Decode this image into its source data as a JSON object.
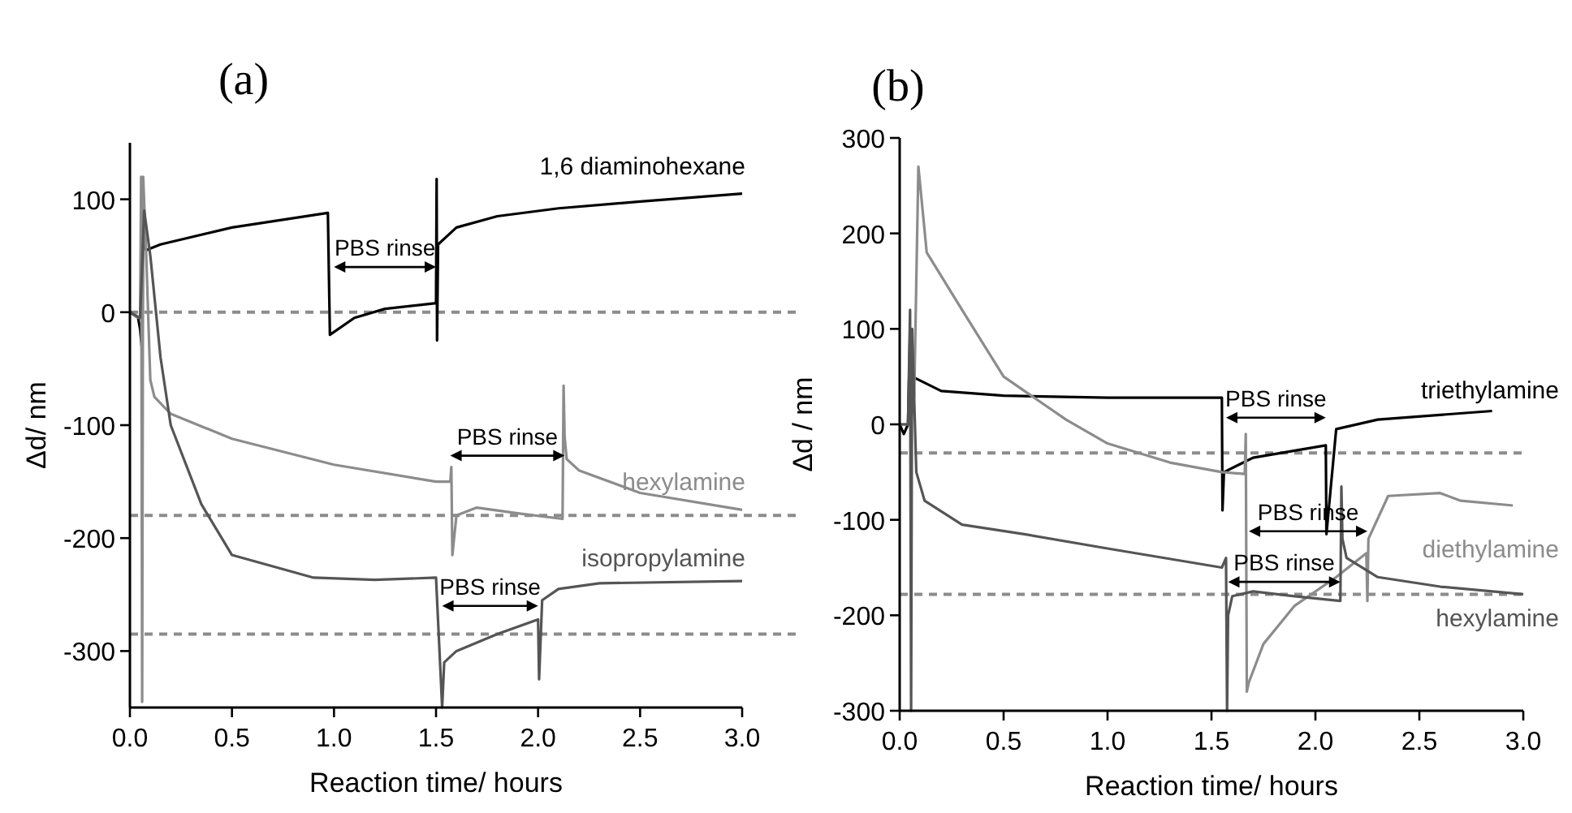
{
  "chart_data": [
    {
      "type": "line",
      "title": "(a)",
      "xlabel": "Reaction time/ hours",
      "ylabel": "Δd/ nm",
      "xlim": [
        0,
        3
      ],
      "ylim": [
        -350,
        150
      ],
      "xticks": [
        {
          "value": 0,
          "label": "0.0"
        },
        {
          "value": 0.5,
          "label": "0.5"
        },
        {
          "value": 1,
          "label": "1.0"
        },
        {
          "value": 1.5,
          "label": "1.5"
        },
        {
          "value": 2,
          "label": "2.0"
        },
        {
          "value": 2.5,
          "label": "2.5"
        },
        {
          "value": 3,
          "label": "3.0"
        }
      ],
      "yticks": [
        -300,
        -200,
        -100,
        0,
        100
      ],
      "series": [
        {
          "name": "1,6 diaminohexane",
          "color": "#000000",
          "x": [
            0,
            0.04,
            0.05,
            0.06,
            0.065,
            0.07,
            0.08,
            0.15,
            0.5,
            0.97,
            0.98,
            1.1,
            1.25,
            1.5,
            1.503,
            1.505,
            1.51,
            1.6,
            1.8,
            2.1,
            2.5,
            3.0
          ],
          "values": [
            0,
            -5,
            -15,
            -35,
            85,
            60,
            55,
            60,
            75,
            88,
            -20,
            -5,
            3,
            8,
            118,
            -25,
            60,
            75,
            85,
            92,
            98,
            105
          ]
        },
        {
          "name": "hexylamine",
          "color": "#8c8c8c",
          "x": [
            0,
            0.04,
            0.05,
            0.055,
            0.06,
            0.065,
            0.08,
            0.1,
            0.12,
            0.2,
            0.5,
            1.0,
            1.5,
            1.57,
            1.575,
            1.58,
            1.6,
            1.7,
            1.9,
            2.12,
            2.125,
            2.13,
            2.14,
            2.2,
            2.5,
            3.0
          ],
          "values": [
            0,
            -5,
            -5,
            120,
            -345,
            120,
            50,
            -60,
            -75,
            -90,
            -112,
            -135,
            -150,
            -150,
            -137,
            -215,
            -180,
            -173,
            -178,
            -183,
            -65,
            -110,
            -130,
            -140,
            -160,
            -175
          ]
        },
        {
          "name": "isopropylamine",
          "color": "#555555",
          "x": [
            0,
            0.05,
            0.07,
            0.1,
            0.15,
            0.2,
            0.35,
            0.5,
            0.9,
            1.2,
            1.5,
            1.53,
            1.54,
            1.6,
            1.8,
            2.0,
            2.005,
            2.02,
            2.1,
            2.3,
            3.0
          ],
          "values": [
            0,
            -5,
            90,
            50,
            -40,
            -100,
            -170,
            -215,
            -235,
            -237,
            -235,
            -350,
            -310,
            -300,
            -285,
            -272,
            -325,
            -255,
            -245,
            -240,
            -238
          ]
        }
      ],
      "ref_lines": [
        {
          "axis": "y",
          "value": 0,
          "color": "#8c8c8c",
          "line_style": "dashed"
        },
        {
          "axis": "y",
          "value": -180,
          "color": "#8c8c8c",
          "line_style": "dashed"
        },
        {
          "axis": "y",
          "value": -285,
          "color": "#8c8c8c",
          "line_style": "dashed"
        }
      ],
      "annotations": [
        "PBS rinse",
        "PBS rinse",
        "PBS rinse"
      ]
    },
    {
      "type": "line",
      "title": "(b)",
      "xlabel": "Reaction time/ hours",
      "ylabel": "Δd / nm",
      "xlim": [
        0,
        3
      ],
      "ylim": [
        -300,
        300
      ],
      "xticks": [
        {
          "value": 0,
          "label": "0.0"
        },
        {
          "value": 0.5,
          "label": "0.5"
        },
        {
          "value": 1,
          "label": "1.0"
        },
        {
          "value": 1.5,
          "label": "1.5"
        },
        {
          "value": 2,
          "label": "2.0"
        },
        {
          "value": 2.5,
          "label": "2.5"
        },
        {
          "value": 3,
          "label": "3.0"
        }
      ],
      "yticks": [
        -300,
        -200,
        -100,
        0,
        100,
        200,
        300
      ],
      "series": [
        {
          "name": "triethylamine",
          "color": "#000000",
          "x": [
            0,
            0.02,
            0.04,
            0.05,
            0.06,
            0.2,
            0.5,
            1.0,
            1.55,
            1.553,
            1.56,
            1.7,
            2.05,
            2.053,
            2.1,
            2.3,
            2.85
          ],
          "values": [
            0,
            -10,
            0,
            95,
            50,
            35,
            30,
            28,
            28,
            -90,
            -50,
            -35,
            -22,
            -115,
            -5,
            5,
            14
          ]
        },
        {
          "name": "diethylamine",
          "color": "#8c8c8c",
          "x": [
            0,
            0.05,
            0.07,
            0.09,
            0.13,
            0.3,
            0.5,
            0.8,
            1.0,
            1.3,
            1.55,
            1.66,
            1.665,
            1.67,
            1.68,
            1.75,
            1.9,
            2.1,
            2.245,
            2.25,
            2.255,
            2.35,
            2.6,
            2.7,
            2.95
          ],
          "values": [
            0,
            0,
            30,
            270,
            180,
            120,
            50,
            5,
            -20,
            -40,
            -50,
            -52,
            -10,
            -280,
            -270,
            -230,
            -190,
            -160,
            -135,
            -185,
            -120,
            -75,
            -72,
            -80,
            -85
          ]
        },
        {
          "name": "hexylamine",
          "color": "#555555",
          "x": [
            0,
            0.04,
            0.05,
            0.055,
            0.06,
            0.08,
            0.12,
            0.3,
            0.6,
            1.0,
            1.55,
            1.57,
            1.575,
            1.58,
            1.6,
            1.7,
            1.9,
            2.12,
            2.125,
            2.13,
            2.15,
            2.3,
            2.6,
            3.0
          ],
          "values": [
            0,
            0,
            120,
            -300,
            100,
            -50,
            -80,
            -105,
            -115,
            -130,
            -150,
            -140,
            -300,
            -200,
            -180,
            -175,
            -180,
            -185,
            -65,
            -120,
            -140,
            -160,
            -170,
            -178
          ]
        }
      ],
      "ref_lines": [
        {
          "axis": "y",
          "value": -30,
          "color": "#8c8c8c",
          "line_style": "dashed"
        },
        {
          "axis": "y",
          "value": -178,
          "color": "#8c8c8c",
          "line_style": "dashed"
        }
      ],
      "annotations": [
        "PBS rinse",
        "PBS rinse",
        "PBS rinse"
      ]
    }
  ]
}
